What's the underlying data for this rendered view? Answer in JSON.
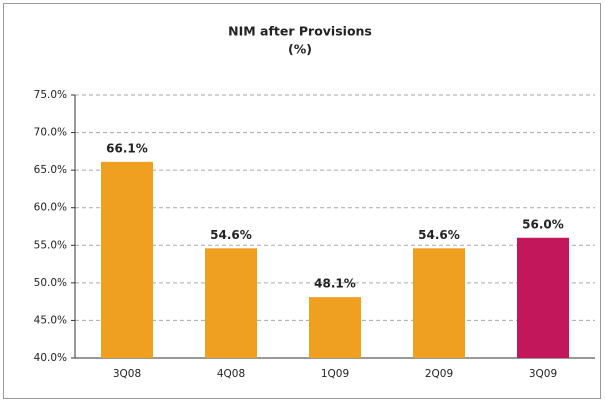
{
  "chart_data": {
    "type": "bar",
    "title": "NIM after Provisions",
    "subtitle": "(%)",
    "categories": [
      "3Q08",
      "4Q08",
      "1Q09",
      "2Q09",
      "3Q09"
    ],
    "values": [
      66.1,
      54.6,
      48.1,
      54.6,
      56.0
    ],
    "value_labels": [
      "66.1%",
      "54.6%",
      "48.1%",
      "54.6%",
      "56.0%"
    ],
    "colors": [
      "#f0a020",
      "#f0a020",
      "#f0a020",
      "#f0a020",
      "#c2185b"
    ],
    "ylim": [
      40,
      75
    ],
    "yticks": [
      {
        "value": 40,
        "label": "40.0%"
      },
      {
        "value": 45,
        "label": "45.0%"
      },
      {
        "value": 50,
        "label": "50.0%"
      },
      {
        "value": 55,
        "label": "55.0%"
      },
      {
        "value": 60,
        "label": "60.0%"
      },
      {
        "value": 65,
        "label": "65.0%"
      },
      {
        "value": 70,
        "label": "70.0%"
      },
      {
        "value": 75,
        "label": "75.0%"
      }
    ],
    "grid": true
  }
}
